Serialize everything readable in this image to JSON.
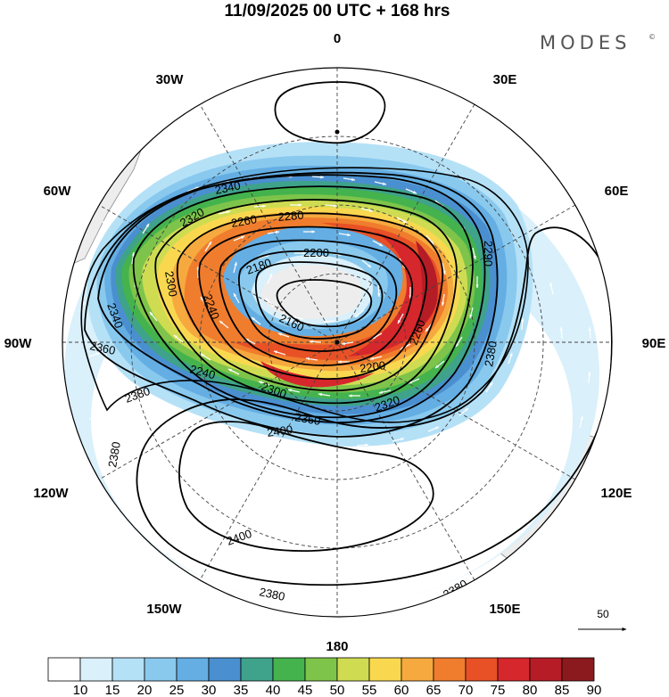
{
  "title": "11/09/2025  00 UTC  + 168 hrs",
  "brand": "MODES",
  "brand_mark": "©",
  "longitude_labels": {
    "lon_0": "0",
    "lon_30e": "30E",
    "lon_60e": "60E",
    "lon_90e": "90E",
    "lon_120e": "120E",
    "lon_150e": "150E",
    "lon_180": "180",
    "lon_150w": "150W",
    "lon_120w": "120W",
    "lon_90w": "90W",
    "lon_60w": "60W",
    "lon_30w": "30W"
  },
  "contour_labels": [
    "2340",
    "2320",
    "2280",
    "2260",
    "2200",
    "2180",
    "2160",
    "2340",
    "2300",
    "2240",
    "2360",
    "2240",
    "2300",
    "2200",
    "2260",
    "2290",
    "2320",
    "2360",
    "2380",
    "2400",
    "2380",
    "2400",
    "2380",
    "2380",
    "2380"
  ],
  "colorbar": {
    "labels": [
      "10",
      "15",
      "20",
      "25",
      "30",
      "35",
      "40",
      "45",
      "50",
      "55",
      "60",
      "65",
      "70",
      "75",
      "80",
      "85",
      "90"
    ],
    "colors": [
      "#ffffff",
      "#daf0fb",
      "#b5e1f7",
      "#89c9ee",
      "#64aee3",
      "#4a8fd0",
      "#3fa28a",
      "#44b34d",
      "#7ec44a",
      "#cfdc52",
      "#f9d850",
      "#f6a93e",
      "#ef7d2d",
      "#e85126",
      "#d6272c",
      "#b51c26",
      "#8b1a1e"
    ]
  },
  "reference_vector": "50",
  "colors": {
    "land": "#ededed",
    "coast": "#8a8a8a",
    "grid": "#444444",
    "contour": "#000000",
    "arrow": "#ffffff"
  }
}
